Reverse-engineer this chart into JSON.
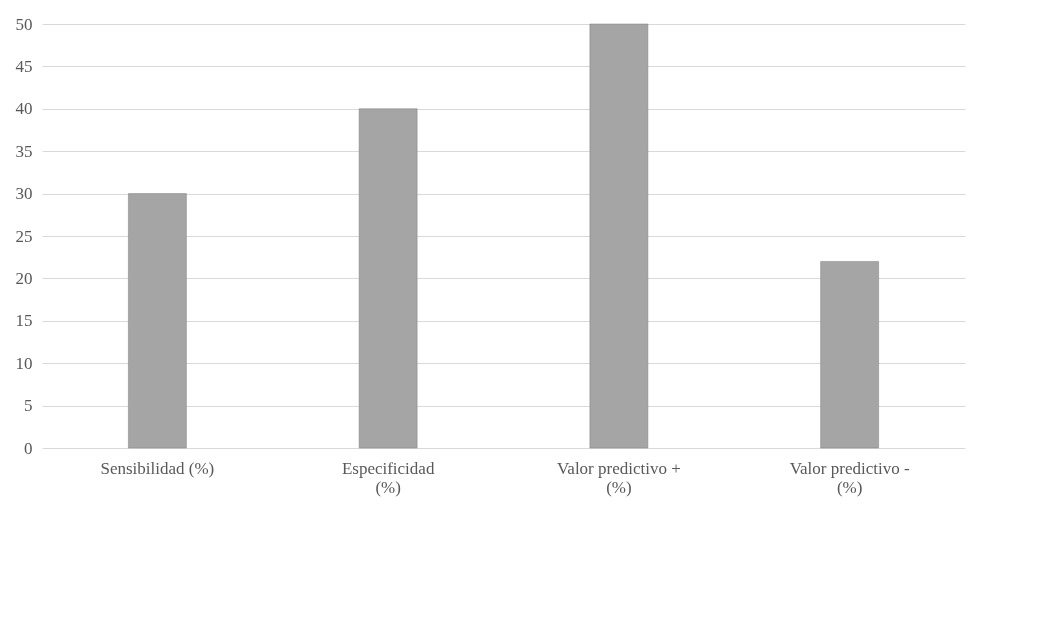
{
  "chart_data": {
    "type": "bar",
    "categories": [
      "Sensibilidad (%)",
      "Especificidad (%)",
      "Valor predictivo + (%)",
      "Valor predictivo - (%)"
    ],
    "values": [
      30,
      40,
      50,
      22
    ],
    "color": "#a5a5a5",
    "ylim": [
      0,
      50
    ],
    "yticks": [
      0,
      5,
      10,
      15,
      20,
      25,
      30,
      35,
      40,
      45,
      50
    ],
    "grid": "y"
  }
}
